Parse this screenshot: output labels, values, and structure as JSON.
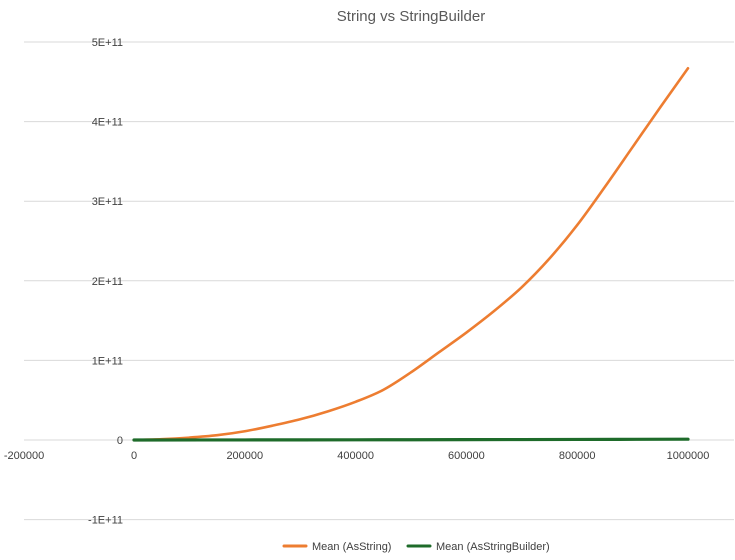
{
  "chart_data": {
    "type": "line",
    "title": "String vs StringBuilder",
    "xlabel": "",
    "ylabel": "",
    "xlim": [
      -200000,
      1000000
    ],
    "ylim": [
      -100000000000,
      500000000000
    ],
    "x_ticks": [
      {
        "value": -200000,
        "label": "-200000"
      },
      {
        "value": 0,
        "label": "0"
      },
      {
        "value": 200000,
        "label": "200000"
      },
      {
        "value": 400000,
        "label": "400000"
      },
      {
        "value": 600000,
        "label": "600000"
      },
      {
        "value": 800000,
        "label": "800000"
      },
      {
        "value": 1000000,
        "label": "1000000"
      }
    ],
    "y_ticks": [
      {
        "value": -100000000000,
        "label": "-1E+11"
      },
      {
        "value": 0,
        "label": "0"
      },
      {
        "value": 100000000000,
        "label": "1E+11"
      },
      {
        "value": 200000000000,
        "label": "2E+11"
      },
      {
        "value": 300000000000,
        "label": "3E+11"
      },
      {
        "value": 400000000000,
        "label": "4E+11"
      },
      {
        "value": 500000000000,
        "label": "5E+11"
      }
    ],
    "grid": "horizontal",
    "legend_position": "bottom",
    "series": [
      {
        "name": "Mean (AsString)",
        "color": "#ED7D31",
        "x": [
          0,
          50000,
          100000,
          150000,
          200000,
          250000,
          300000,
          350000,
          400000,
          450000,
          500000,
          550000,
          600000,
          650000,
          700000,
          750000,
          800000,
          850000,
          900000,
          950000,
          1000000
        ],
        "values": [
          0,
          1000000000,
          3000000000,
          6000000000,
          11000000000,
          18000000000,
          26000000000,
          36000000000,
          48000000000,
          63000000000,
          85000000000,
          110000000000,
          135000000000,
          162000000000,
          192000000000,
          228000000000,
          270000000000,
          318000000000,
          368000000000,
          418000000000,
          467000000000
        ]
      },
      {
        "name": "Mean (AsStringBuilder)",
        "color": "#1E6B2A",
        "x": [
          0,
          200000,
          400000,
          600000,
          800000,
          1000000
        ],
        "values": [
          0,
          100000000,
          250000000,
          450000000,
          700000000,
          1000000000
        ]
      }
    ]
  }
}
